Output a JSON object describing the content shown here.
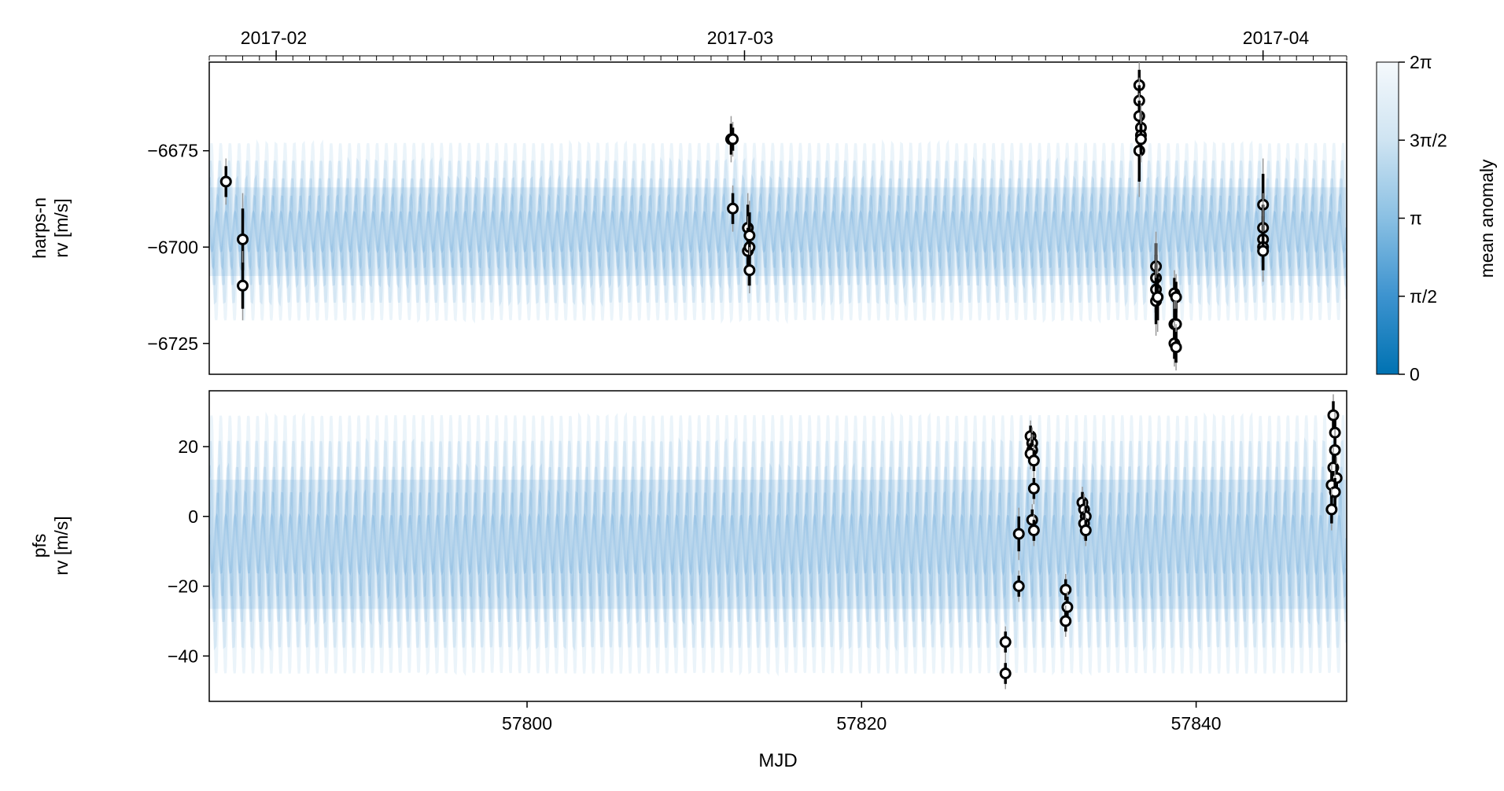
{
  "figure": {
    "top_axis_dates": [
      "2017-02",
      "2017-03",
      "2017-04"
    ],
    "xlabel": "MJD",
    "x_tick_labels": [
      "57800",
      "57820",
      "57840"
    ],
    "colorbar": {
      "label": "mean anomaly",
      "tick_labels": [
        "0",
        "π/2",
        "π",
        "3π/2",
        "2π"
      ],
      "color_low": "#0072b2",
      "color_high": "#f5f9fc"
    }
  },
  "chart_data": [
    {
      "type": "scatter",
      "title": "",
      "ylabel_line1": "harps-n",
      "ylabel_line2": "rv [m/s]",
      "xlabel": "",
      "xlim": [
        57781,
        57849
      ],
      "ylim": [
        -6733,
        -6652
      ],
      "x_ticks": [
        57800,
        57820,
        57840
      ],
      "y_ticks": [
        -6675,
        -6700,
        -6725
      ],
      "y_tick_labels": [
        "−6675",
        "−6700",
        "−6725"
      ],
      "grid": false,
      "model_band": {
        "center": -6696,
        "half_width": 23,
        "period_days": 0.55,
        "color": "#3d8fd0"
      },
      "series": [
        {
          "marker": "open-circle",
          "points": [
            {
              "x": 57782.0,
              "y": -6683,
              "err": 4
            },
            {
              "x": 57783.0,
              "y": -6698,
              "err": 8
            },
            {
              "x": 57783.0,
              "y": -6710,
              "err": 6
            },
            {
              "x": 57812.2,
              "y": -6672,
              "err": 4
            },
            {
              "x": 57812.3,
              "y": -6672,
              "err": 3
            },
            {
              "x": 57812.3,
              "y": -6690,
              "err": 4
            },
            {
              "x": 57813.2,
              "y": -6695,
              "err": 6
            },
            {
              "x": 57813.2,
              "y": -6701,
              "err": 6
            },
            {
              "x": 57813.3,
              "y": -6700,
              "err": 6
            },
            {
              "x": 57813.3,
              "y": -6697,
              "err": 6
            },
            {
              "x": 57813.3,
              "y": -6706,
              "err": 4
            },
            {
              "x": 57836.6,
              "y": -6675,
              "err": 8
            },
            {
              "x": 57836.6,
              "y": -6658,
              "err": 4
            },
            {
              "x": 57836.6,
              "y": -6662,
              "err": 4
            },
            {
              "x": 57836.6,
              "y": -6666,
              "err": 4
            },
            {
              "x": 57836.7,
              "y": -6669,
              "err": 4
            },
            {
              "x": 57836.7,
              "y": -6671,
              "err": 4
            },
            {
              "x": 57836.7,
              "y": -6672,
              "err": 4
            },
            {
              "x": 57837.6,
              "y": -6705,
              "err": 6
            },
            {
              "x": 57837.6,
              "y": -6708,
              "err": 6
            },
            {
              "x": 57837.6,
              "y": -6711,
              "err": 6
            },
            {
              "x": 57837.6,
              "y": -6714,
              "err": 6
            },
            {
              "x": 57837.7,
              "y": -6713,
              "err": 6
            },
            {
              "x": 57838.7,
              "y": -6712,
              "err": 4
            },
            {
              "x": 57838.8,
              "y": -6713,
              "err": 4
            },
            {
              "x": 57838.7,
              "y": -6720,
              "err": 4
            },
            {
              "x": 57838.8,
              "y": -6720,
              "err": 4
            },
            {
              "x": 57838.7,
              "y": -6725,
              "err": 4
            },
            {
              "x": 57838.8,
              "y": -6726,
              "err": 4
            },
            {
              "x": 57844.0,
              "y": -6689,
              "err": 8
            },
            {
              "x": 57844.0,
              "y": -6695,
              "err": 6
            },
            {
              "x": 57844.0,
              "y": -6698,
              "err": 6
            },
            {
              "x": 57844.0,
              "y": -6700,
              "err": 6
            },
            {
              "x": 57844.0,
              "y": -6701,
              "err": 5
            }
          ]
        }
      ]
    },
    {
      "type": "scatter",
      "title": "",
      "ylabel_line1": "pfs",
      "ylabel_line2": "rv [m/s]",
      "xlabel": "MJD",
      "xlim": [
        57781,
        57849
      ],
      "ylim": [
        -53,
        36
      ],
      "x_ticks": [
        57800,
        57820,
        57840
      ],
      "y_ticks": [
        20,
        0,
        -20,
        -40
      ],
      "y_tick_labels": [
        "20",
        "0",
        "−20",
        "−40"
      ],
      "grid": false,
      "model_band": {
        "center": -8,
        "half_width": 37,
        "period_days": 0.55,
        "color": "#3d8fd0"
      },
      "series": [
        {
          "marker": "open-circle",
          "points": [
            {
              "x": 57828.6,
              "y": -36,
              "err": 3
            },
            {
              "x": 57828.6,
              "y": -45,
              "err": 3
            },
            {
              "x": 57829.4,
              "y": -5,
              "err": 5
            },
            {
              "x": 57829.4,
              "y": -20,
              "err": 3
            },
            {
              "x": 57830.1,
              "y": 23,
              "err": 3
            },
            {
              "x": 57830.2,
              "y": 21,
              "err": 3
            },
            {
              "x": 57830.2,
              "y": 19,
              "err": 3
            },
            {
              "x": 57830.1,
              "y": 18,
              "err": 3
            },
            {
              "x": 57830.3,
              "y": 16,
              "err": 3
            },
            {
              "x": 57830.3,
              "y": 8,
              "err": 3
            },
            {
              "x": 57830.2,
              "y": -1,
              "err": 3
            },
            {
              "x": 57830.3,
              "y": -4,
              "err": 3
            },
            {
              "x": 57832.2,
              "y": -21,
              "err": 3
            },
            {
              "x": 57832.3,
              "y": -26,
              "err": 3
            },
            {
              "x": 57832.2,
              "y": -30,
              "err": 3
            },
            {
              "x": 57833.2,
              "y": 4,
              "err": 3
            },
            {
              "x": 57833.3,
              "y": 2,
              "err": 3
            },
            {
              "x": 57833.4,
              "y": 0,
              "err": 3
            },
            {
              "x": 57833.3,
              "y": -2,
              "err": 3
            },
            {
              "x": 57833.4,
              "y": -4,
              "err": 3
            },
            {
              "x": 57848.2,
              "y": 29,
              "err": 4
            },
            {
              "x": 57848.3,
              "y": 24,
              "err": 4
            },
            {
              "x": 57848.3,
              "y": 19,
              "err": 4
            },
            {
              "x": 57848.2,
              "y": 14,
              "err": 4
            },
            {
              "x": 57848.4,
              "y": 11,
              "err": 4
            },
            {
              "x": 57848.1,
              "y": 9,
              "err": 4
            },
            {
              "x": 57848.3,
              "y": 7,
              "err": 4
            },
            {
              "x": 57848.1,
              "y": 2,
              "err": 4
            }
          ]
        }
      ]
    }
  ]
}
